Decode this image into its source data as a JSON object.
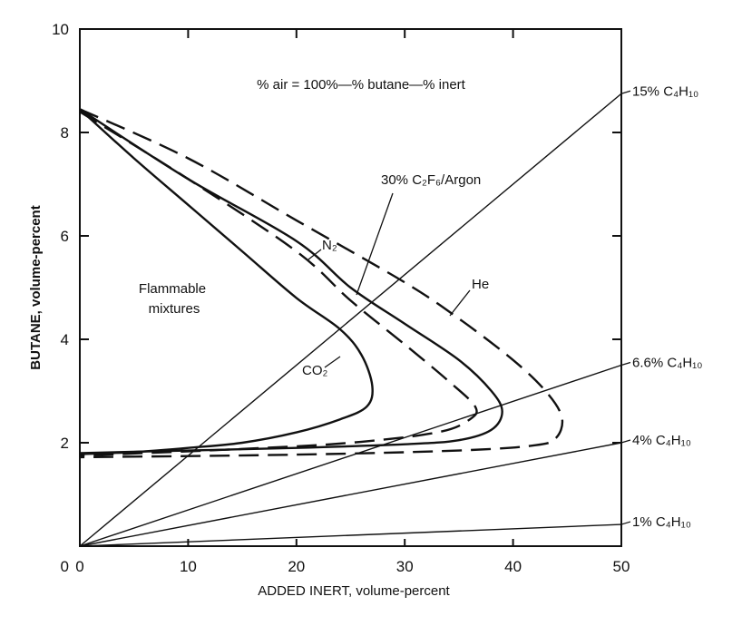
{
  "chart_data": {
    "type": "line",
    "title": "% air = 100%—% butane—% inert",
    "xlabel": "ADDED INERT, volume-percent",
    "ylabel": "BUTANE, volume-percent",
    "xlim": [
      0,
      50
    ],
    "ylim": [
      0,
      10
    ],
    "xticks": [
      "0",
      "10",
      "20",
      "30",
      "40",
      "50"
    ],
    "yticks": [
      "10",
      "8",
      "6",
      "4",
      "2"
    ],
    "grid": false,
    "region_label": [
      "Flammable",
      "mixtures"
    ],
    "series": [
      {
        "name": "CO2",
        "label": "CO₂",
        "style": "solid",
        "points": [
          [
            0,
            8.45
          ],
          [
            5,
            7.5
          ],
          [
            10,
            6.6
          ],
          [
            15,
            5.7
          ],
          [
            20,
            4.8
          ],
          [
            24,
            4.2
          ],
          [
            26,
            3.7
          ],
          [
            27,
            3.1
          ],
          [
            26.5,
            2.7
          ],
          [
            24,
            2.45
          ],
          [
            20,
            2.2
          ],
          [
            15,
            2.0
          ],
          [
            10,
            1.9
          ],
          [
            5,
            1.82
          ],
          [
            0,
            1.78
          ]
        ]
      },
      {
        "name": "N2",
        "label": "N₂",
        "style": "solid",
        "points": [
          [
            0,
            8.45
          ],
          [
            10,
            7.1
          ],
          [
            20,
            5.9
          ],
          [
            25,
            5.0
          ],
          [
            30,
            4.3
          ],
          [
            35,
            3.6
          ],
          [
            38,
            3.0
          ],
          [
            39,
            2.6
          ],
          [
            38,
            2.25
          ],
          [
            35,
            2.05
          ],
          [
            30,
            1.97
          ],
          [
            20,
            1.9
          ],
          [
            10,
            1.85
          ],
          [
            0,
            1.8
          ]
        ]
      },
      {
        "name": "30% C2F6/Argon",
        "label": "30% C₂F₆/Argon",
        "style": "dashed",
        "points": [
          [
            0,
            8.4
          ],
          [
            10,
            7.1
          ],
          [
            20,
            5.7
          ],
          [
            25,
            4.75
          ],
          [
            30,
            3.9
          ],
          [
            34,
            3.2
          ],
          [
            36.5,
            2.7
          ],
          [
            36,
            2.45
          ],
          [
            33,
            2.2
          ],
          [
            25,
            2.0
          ],
          [
            15,
            1.88
          ],
          [
            0,
            1.75
          ]
        ]
      },
      {
        "name": "He",
        "label": "He",
        "style": "dashed",
        "points": [
          [
            0,
            8.45
          ],
          [
            10,
            7.5
          ],
          [
            20,
            6.3
          ],
          [
            30,
            5.1
          ],
          [
            35,
            4.4
          ],
          [
            40,
            3.6
          ],
          [
            43,
            3.0
          ],
          [
            44.5,
            2.5
          ],
          [
            44,
            2.1
          ],
          [
            42,
            1.95
          ],
          [
            35,
            1.85
          ],
          [
            20,
            1.77
          ],
          [
            0,
            1.72
          ]
        ]
      }
    ],
    "reference_lines": [
      {
        "label": "15% C₄H₁₀",
        "points": [
          [
            0,
            0
          ],
          [
            50,
            8.75
          ]
        ]
      },
      {
        "label": "6.6% C₄H₁₀",
        "points": [
          [
            0,
            0
          ],
          [
            50,
            3.5
          ]
        ]
      },
      {
        "label": "4% C₄H₁₀",
        "points": [
          [
            0,
            0
          ],
          [
            50,
            2.0
          ]
        ]
      },
      {
        "label": "1% C₄H₁₀",
        "points": [
          [
            0,
            0
          ],
          [
            50,
            0.42
          ]
        ]
      }
    ]
  }
}
